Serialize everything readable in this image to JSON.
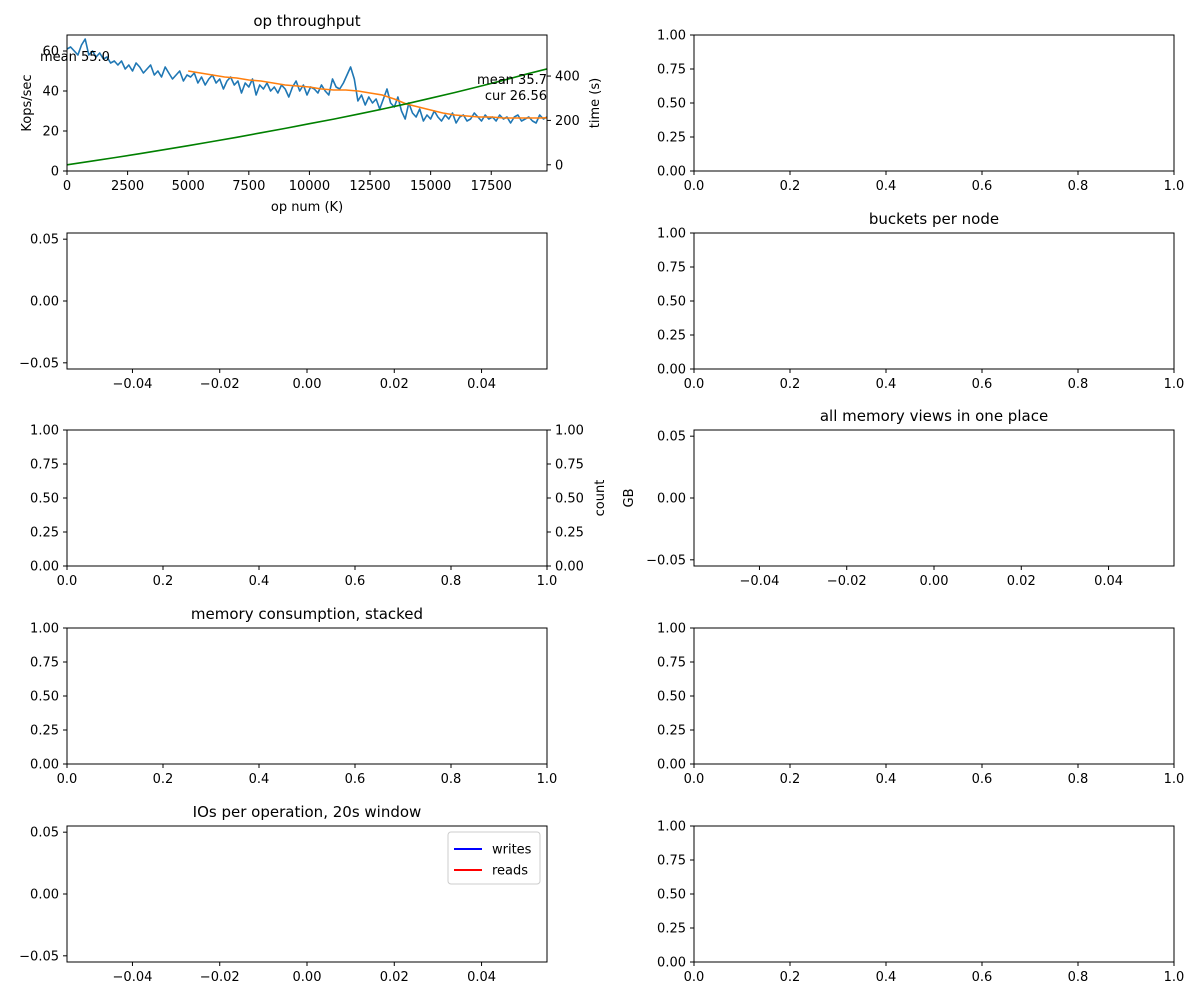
{
  "figure": {
    "title": ""
  },
  "chart_data": [
    {
      "id": "op-throughput",
      "type": "line",
      "title": "op throughput",
      "xlabel": "op num (K)",
      "ylabel": "Kops/sec",
      "y2label": "time (s)",
      "xlim": [
        0,
        19800
      ],
      "ylim": [
        0,
        68
      ],
      "y2lim": [
        -28,
        585
      ],
      "xticks": [
        0,
        2500,
        5000,
        7500,
        10000,
        12500,
        15000,
        17500
      ],
      "yticks": [
        0,
        20,
        40,
        60
      ],
      "y2ticks": [
        0,
        200,
        400
      ],
      "annotations": [
        "mean 55.0",
        "mean 35.7",
        "cur 26.56"
      ],
      "series": [
        {
          "axis": "left",
          "color": "#1f77b4",
          "x": [
            0,
            150,
            300,
            450,
            600,
            750,
            900,
            1050,
            1200,
            1350,
            1500,
            1650,
            1800,
            1950,
            2100,
            2250,
            2400,
            2550,
            2700,
            2850,
            3000,
            3150,
            3300,
            3450,
            3600,
            3750,
            3900,
            4050,
            4200,
            4350,
            4500,
            4650,
            4800,
            4950,
            5100,
            5250,
            5400,
            5550,
            5700,
            5850,
            6000,
            6150,
            6300,
            6450,
            6600,
            6750,
            6900,
            7050,
            7200,
            7350,
            7500,
            7650,
            7800,
            7950,
            8100,
            8250,
            8400,
            8550,
            8700,
            8850,
            9000,
            9150,
            9300,
            9450,
            9600,
            9750,
            9900,
            10050,
            10200,
            10350,
            10500,
            10650,
            10800,
            10950,
            11100,
            11250,
            11400,
            11550,
            11700,
            11850,
            12000,
            12150,
            12300,
            12450,
            12600,
            12750,
            12900,
            13050,
            13200,
            13350,
            13500,
            13650,
            13800,
            13950,
            14100,
            14250,
            14400,
            14550,
            14700,
            14850,
            15000,
            15150,
            15300,
            15450,
            15600,
            15750,
            15900,
            16050,
            16200,
            16350,
            16500,
            16650,
            16800,
            16950,
            17100,
            17250,
            17400,
            17550,
            17700,
            17850,
            18000,
            18150,
            18300,
            18450,
            18600,
            18750,
            18900,
            19050,
            19200,
            19350,
            19500,
            19650,
            19800
          ],
          "values": [
            61,
            62,
            60,
            58,
            63,
            66,
            58,
            60,
            57,
            59,
            56,
            57,
            54,
            55,
            53,
            55,
            51,
            53,
            50,
            54,
            52,
            49,
            51,
            53,
            48,
            50,
            47,
            52,
            49,
            46,
            48,
            50,
            45,
            48,
            47,
            49,
            44,
            47,
            43,
            46,
            48,
            44,
            46,
            41,
            45,
            47,
            43,
            45,
            39,
            44,
            42,
            46,
            38,
            43,
            41,
            44,
            40,
            42,
            39,
            43,
            41,
            37,
            42,
            45,
            40,
            43,
            38,
            42,
            41,
            39,
            43,
            40,
            38,
            46,
            42,
            41,
            44,
            48,
            52,
            46,
            35,
            38,
            33,
            37,
            34,
            36,
            31,
            36,
            41,
            34,
            32,
            37,
            30,
            26,
            34,
            29,
            27,
            31,
            25,
            28,
            26,
            30,
            27,
            25,
            28,
            26,
            29,
            24,
            27,
            28,
            25,
            26,
            29,
            27,
            25,
            28,
            26,
            27,
            25,
            28,
            26,
            27,
            24,
            27,
            28,
            25,
            26,
            27,
            25,
            24,
            28,
            26,
            27
          ]
        },
        {
          "axis": "left",
          "color": "#ff7f0e",
          "x": [
            5000,
            5500,
            6000,
            6500,
            7000,
            7500,
            8000,
            8500,
            9000,
            9500,
            10000,
            10500,
            11000,
            11500,
            12000,
            12500,
            13000,
            13500,
            14000,
            14500,
            15000,
            15500,
            16000,
            16500,
            17000,
            17500,
            18000,
            18500,
            19000,
            19500,
            19800
          ],
          "values": [
            50,
            49,
            48,
            47,
            46.5,
            45.5,
            45,
            44,
            43,
            42.5,
            42,
            41,
            40.5,
            40.5,
            40,
            39,
            38,
            36,
            33.5,
            32,
            30.5,
            29,
            28,
            27.5,
            27,
            27,
            26.5,
            26.5,
            26.5,
            26.5,
            26.6
          ]
        },
        {
          "axis": "right",
          "color": "#008000",
          "x": [
            0,
            1000,
            2000,
            3000,
            4000,
            5000,
            6000,
            7000,
            8000,
            9000,
            10000,
            11000,
            12000,
            13000,
            14000,
            15000,
            16000,
            17000,
            18000,
            19000,
            19800
          ],
          "values": [
            0,
            16,
            33,
            50,
            68,
            86,
            105,
            124,
            144,
            164,
            185,
            206,
            228,
            251,
            275,
            300,
            326,
            353,
            381,
            410,
            432
          ]
        }
      ]
    },
    {
      "id": "empty-r1c2",
      "type": "line",
      "title": "",
      "xlim": [
        0,
        1
      ],
      "ylim": [
        0,
        1
      ],
      "xticks": [
        "0.0",
        "0.2",
        "0.4",
        "0.6",
        "0.8",
        "1.0"
      ],
      "yticks": [
        "0.00",
        "0.25",
        "0.50",
        "0.75",
        "1.00"
      ],
      "series": []
    },
    {
      "id": "empty-r2c1",
      "type": "line",
      "title": "",
      "xlim": [
        -0.055,
        0.055
      ],
      "ylim": [
        -0.055,
        0.055
      ],
      "xticks": [
        "−0.04",
        "−0.02",
        "0.00",
        "0.02",
        "0.04"
      ],
      "yticks": [
        "−0.05",
        "0.00",
        "0.05"
      ],
      "series": []
    },
    {
      "id": "buckets-per-node",
      "type": "line",
      "title": "buckets per node",
      "xlim": [
        0,
        1
      ],
      "ylim": [
        0,
        1
      ],
      "xticks": [
        "0.0",
        "0.2",
        "0.4",
        "0.6",
        "0.8",
        "1.0"
      ],
      "yticks": [
        "0.00",
        "0.25",
        "0.50",
        "0.75",
        "1.00"
      ],
      "series": []
    },
    {
      "id": "empty-r3c1",
      "type": "line",
      "title": "",
      "y2label": "count",
      "xlim": [
        0,
        1
      ],
      "ylim": [
        0,
        1
      ],
      "y2lim": [
        0,
        1
      ],
      "xticks": [
        "0.0",
        "0.2",
        "0.4",
        "0.6",
        "0.8",
        "1.0"
      ],
      "yticks": [
        "0.00",
        "0.25",
        "0.50",
        "0.75",
        "1.00"
      ],
      "y2ticks": [
        "0.00",
        "0.25",
        "0.50",
        "0.75",
        "1.00"
      ],
      "series": []
    },
    {
      "id": "all-memory-views",
      "type": "line",
      "title": "all memory views in one place",
      "ylabel": "GB",
      "xlim": [
        -0.055,
        0.055
      ],
      "ylim": [
        -0.055,
        0.055
      ],
      "xticks": [
        "−0.04",
        "−0.02",
        "0.00",
        "0.02",
        "0.04"
      ],
      "yticks": [
        "−0.05",
        "0.00",
        "0.05"
      ],
      "series": []
    },
    {
      "id": "memory-consumption-stacked",
      "type": "area",
      "title": "memory consumption, stacked",
      "xlim": [
        0,
        1
      ],
      "ylim": [
        0,
        1
      ],
      "xticks": [
        "0.0",
        "0.2",
        "0.4",
        "0.6",
        "0.8",
        "1.0"
      ],
      "yticks": [
        "0.00",
        "0.25",
        "0.50",
        "0.75",
        "1.00"
      ],
      "series": []
    },
    {
      "id": "empty-r4c2",
      "type": "line",
      "title": "",
      "xlim": [
        0,
        1
      ],
      "ylim": [
        0,
        1
      ],
      "xticks": [
        "0.0",
        "0.2",
        "0.4",
        "0.6",
        "0.8",
        "1.0"
      ],
      "yticks": [
        "0.00",
        "0.25",
        "0.50",
        "0.75",
        "1.00"
      ],
      "series": []
    },
    {
      "id": "ios-per-operation",
      "type": "line",
      "title": "IOs per operation, 20s window",
      "xlim": [
        -0.055,
        0.055
      ],
      "ylim": [
        -0.055,
        0.055
      ],
      "xticks": [
        "−0.04",
        "−0.02",
        "0.00",
        "0.02",
        "0.04"
      ],
      "yticks": [
        "−0.05",
        "0.00",
        "0.05"
      ],
      "legend": {
        "position": "upper-right",
        "entries": [
          {
            "name": "writes",
            "color": "#0000ff"
          },
          {
            "name": "reads",
            "color": "#ff0000"
          }
        ]
      },
      "series": [
        {
          "name": "writes",
          "color": "#0000ff",
          "values": []
        },
        {
          "name": "reads",
          "color": "#ff0000",
          "values": []
        }
      ]
    },
    {
      "id": "empty-r5c2",
      "type": "line",
      "title": "",
      "xlim": [
        0,
        1
      ],
      "ylim": [
        0,
        1
      ],
      "xticks": [
        "0.0",
        "0.2",
        "0.4",
        "0.6",
        "0.8",
        "1.0"
      ],
      "yticks": [
        "0.00",
        "0.25",
        "0.50",
        "0.75",
        "1.00"
      ],
      "series": []
    }
  ]
}
